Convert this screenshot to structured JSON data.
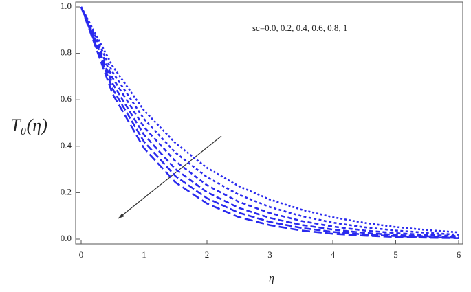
{
  "chart_data": {
    "type": "line",
    "annotation": "sc=0.0, 0.2, 0.4, 0.6, 0.8, 1",
    "x_label": "η",
    "y_label": "T₀(η)",
    "x": [
      0,
      0.5,
      1,
      1.5,
      2,
      2.5,
      3,
      3.5,
      4,
      4.5,
      5,
      5.5,
      6
    ],
    "series": [
      {
        "color": "#2a2aee",
        "values": [
          1,
          0.745,
          0.554,
          0.413,
          0.307,
          0.229,
          0.17,
          0.127,
          0.094,
          0.07,
          0.052,
          0.039,
          0.029
        ]
      },
      {
        "color": "#2a2aee",
        "values": [
          1,
          0.719,
          0.517,
          0.372,
          0.267,
          0.192,
          0.138,
          0.099,
          0.071,
          0.051,
          0.037,
          0.027,
          0.019
        ]
      },
      {
        "color": "#2a2aee",
        "values": [
          1,
          0.694,
          0.482,
          0.335,
          0.232,
          0.161,
          0.112,
          0.078,
          0.054,
          0.037,
          0.026,
          0.018,
          0.013
        ]
      },
      {
        "color": "#2a2aee",
        "values": [
          1,
          0.67,
          0.449,
          0.301,
          0.202,
          0.135,
          0.091,
          0.061,
          0.041,
          0.027,
          0.018,
          0.012,
          0.008
        ]
      },
      {
        "color": "#2a2aee",
        "values": [
          1,
          0.647,
          0.419,
          0.271,
          0.176,
          0.114,
          0.074,
          0.048,
          0.031,
          0.02,
          0.013,
          0.008,
          0.005
        ]
      },
      {
        "color": "#2a2aee",
        "values": [
          1,
          0.625,
          0.391,
          0.244,
          0.153,
          0.095,
          0.06,
          0.037,
          0.023,
          0.015,
          0.009,
          0.006,
          0.004
        ]
      }
    ],
    "xlim": [
      0,
      6
    ],
    "xticks": [
      0,
      1,
      2,
      3,
      4,
      5,
      6
    ],
    "ylim": [
      0,
      1
    ],
    "yticks": [
      {
        "value": 0,
        "label": "0.0"
      },
      {
        "value": 0.2,
        "label": "0.2"
      },
      {
        "value": 0.4,
        "label": "0.4"
      },
      {
        "value": 0.6,
        "label": "0.6"
      },
      {
        "value": 0.8,
        "label": "0.8"
      },
      {
        "value": 1,
        "label": "1.0"
      }
    ]
  }
}
